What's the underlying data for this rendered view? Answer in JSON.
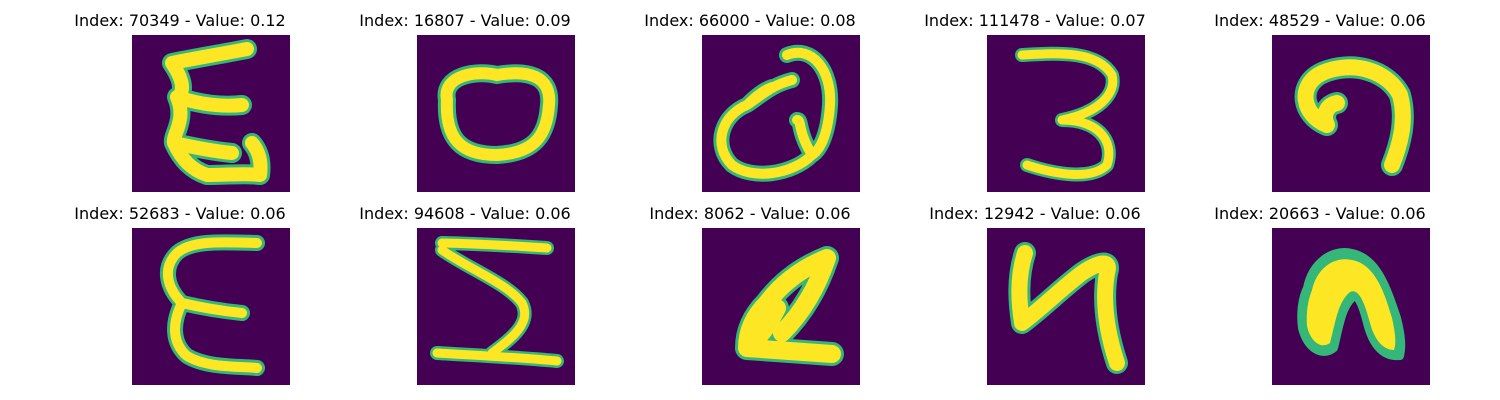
{
  "colors": {
    "background": "#440154",
    "stroke": "#fde725",
    "edge": "#35b779"
  },
  "panels": [
    {
      "title": "Index: 70349 - Value: 0.12",
      "glyph": "epsilon-like"
    },
    {
      "title": "Index: 16807 - Value: 0.09",
      "glyph": "zero-like"
    },
    {
      "title": "Index: 66000 - Value: 0.08",
      "glyph": "Q-like"
    },
    {
      "title": "Index: 111478 - Value: 0.07",
      "glyph": "three"
    },
    {
      "title": "Index: 48529 - Value: 0.06",
      "glyph": "hook"
    },
    {
      "title": "Index: 52683 - Value: 0.06",
      "glyph": "epsilon"
    },
    {
      "title": "Index: 94608 - Value: 0.06",
      "glyph": "sigma"
    },
    {
      "title": "Index: 8062 - Value: 0.06",
      "glyph": "A-like"
    },
    {
      "title": "Index: 12942 - Value: 0.06",
      "glyph": "four-like"
    },
    {
      "title": "Index: 20663 - Value: 0.06",
      "glyph": "n-like"
    }
  ]
}
